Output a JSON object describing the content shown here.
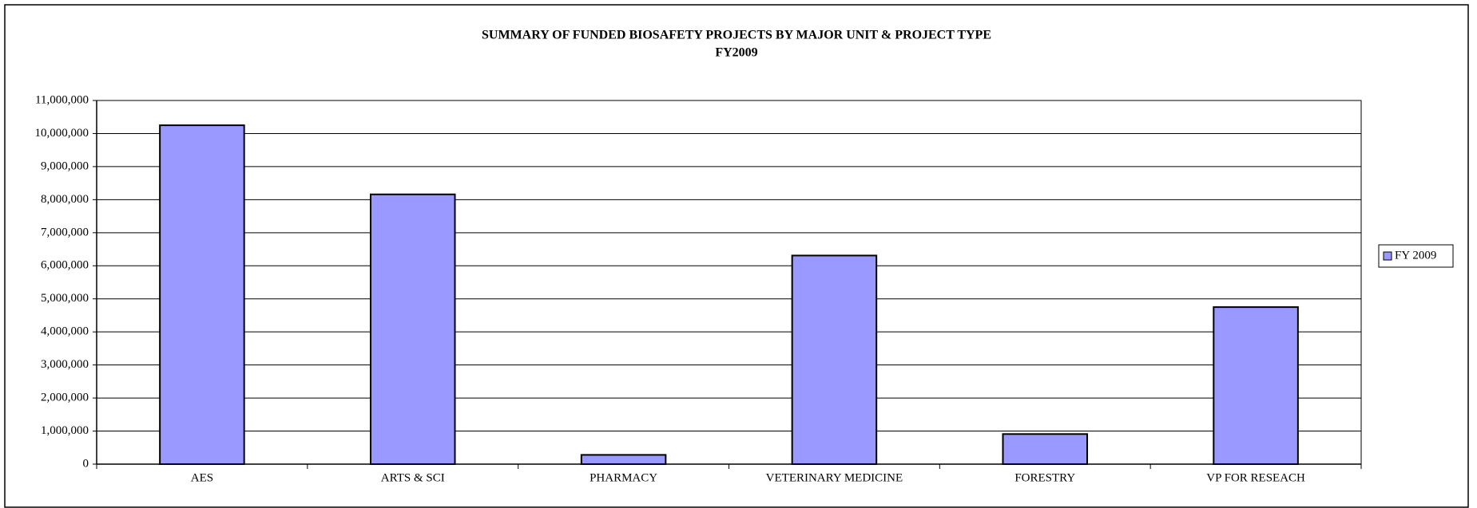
{
  "chart_data": {
    "type": "bar",
    "title": "SUMMARY OF FUNDED BIOSAFETY PROJECTS BY MAJOR UNIT & PROJECT TYPE",
    "subtitle": "FY2009",
    "categories": [
      "AES",
      "ARTS & SCI",
      "PHARMACY",
      "VETERINARY MEDICINE",
      "FORESTRY",
      "VP FOR RESEACH"
    ],
    "series": [
      {
        "name": "FY 2009",
        "color": "#9999ff",
        "values": [
          10250000,
          8160000,
          280000,
          6310000,
          910000,
          4750000
        ]
      }
    ],
    "ylim": [
      0,
      11000000
    ],
    "yticks": [
      0,
      {
        "value": 1000000,
        "label": "1,000,000"
      },
      {
        "value": 2000000,
        "label": "2,000,000"
      },
      {
        "value": 3000000,
        "label": "3,000,000"
      },
      {
        "value": 4000000,
        "label": "4,000,000"
      },
      {
        "value": 5000000,
        "label": "5,000,000"
      },
      {
        "value": 6000000,
        "label": "6,000,000"
      },
      {
        "value": 7000000,
        "label": "7,000,000"
      },
      {
        "value": 8000000,
        "label": "8,000,000"
      },
      {
        "value": 9000000,
        "label": "9,000,000"
      },
      {
        "value": 10000000,
        "label": "10,000,000"
      },
      {
        "value": 11000000,
        "label": "11,000,000"
      }
    ],
    "grid": true,
    "legend": "right"
  }
}
